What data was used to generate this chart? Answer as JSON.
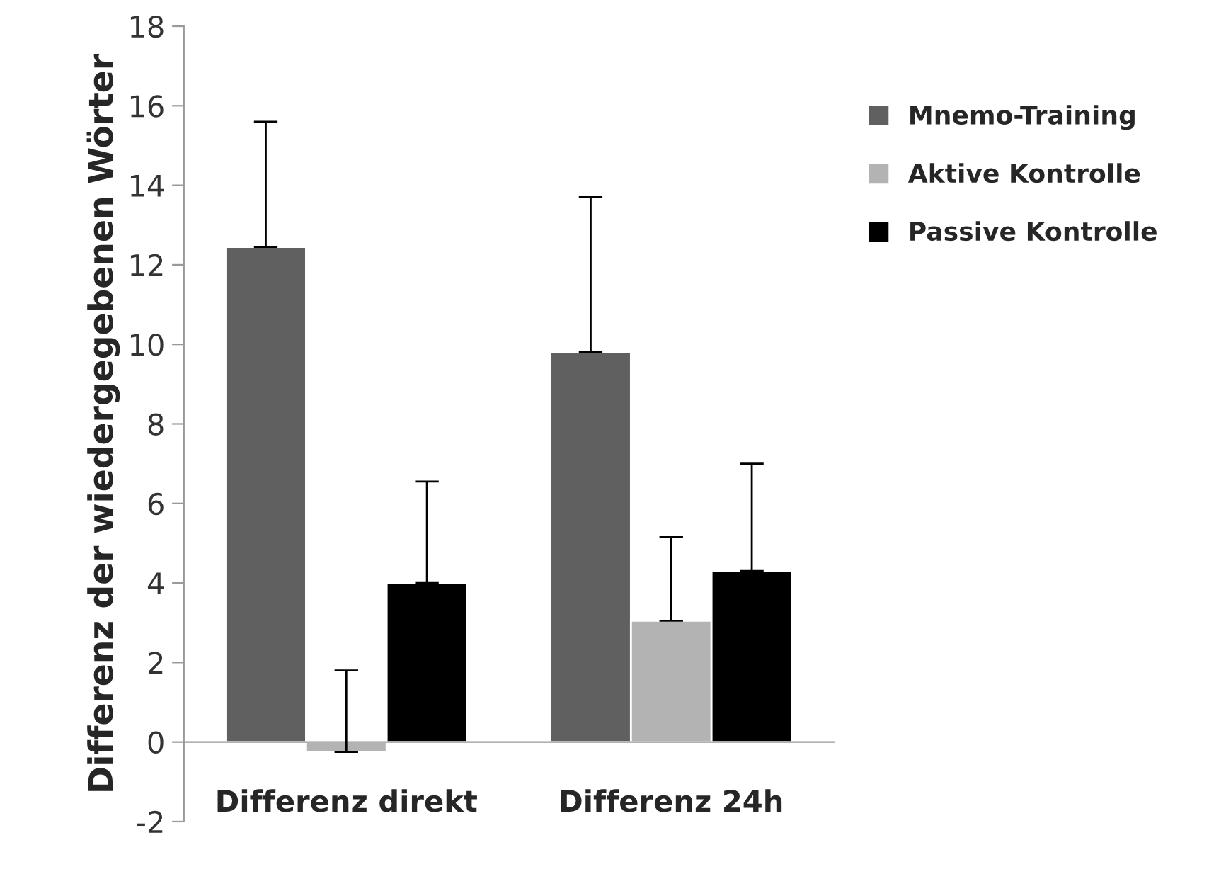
{
  "chart_data": {
    "type": "bar",
    "ylabel": "Differenz der wiedergegebenen Wörter",
    "categories": [
      "Differenz direkt",
      "Differenz 24h"
    ],
    "series": [
      {
        "name": "Mnemo-Training",
        "color": "#606060",
        "values": [
          12.45,
          9.8
        ],
        "errors": [
          [
            12.45,
            15.6
          ],
          [
            9.8,
            13.7
          ]
        ]
      },
      {
        "name": "Aktive Kontrolle",
        "color": "#b3b3b3",
        "values": [
          -0.25,
          3.05
        ],
        "errors": [
          [
            -0.25,
            1.8
          ],
          [
            3.05,
            5.15
          ]
        ]
      },
      {
        "name": "Passive Kontrolle",
        "color": "#000000",
        "values": [
          4.0,
          4.3
        ],
        "errors": [
          [
            4.0,
            6.55
          ],
          [
            4.3,
            7.0
          ]
        ]
      }
    ],
    "ylim": [
      -2,
      18
    ],
    "yticks": [
      -2,
      0,
      2,
      4,
      6,
      8,
      10,
      12,
      14,
      16,
      18
    ],
    "grid": false,
    "legend": "top right"
  }
}
